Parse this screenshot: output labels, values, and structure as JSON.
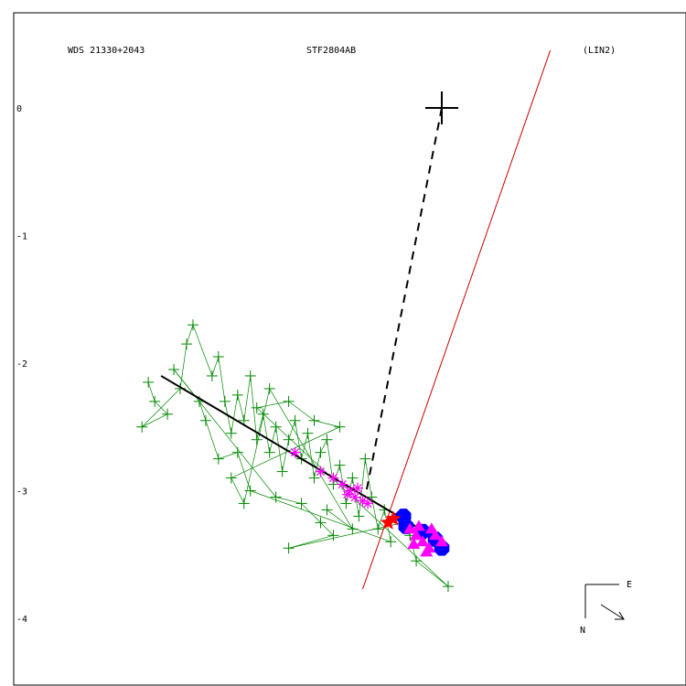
{
  "header": {
    "left": "WDS 21330+2043",
    "center": "STF2804AB",
    "right": "(LIN2)"
  },
  "compass": {
    "east_label": "E",
    "north_label": "N"
  },
  "colors": {
    "frame": "#000000",
    "micrometer": "#008800",
    "interferometric": "#ff00ff",
    "speckle": "#0000ff",
    "current": "#ff0000",
    "fit_line": "#000000",
    "red_line": "#cc0000"
  },
  "chart_data": {
    "type": "scatter",
    "y_ticks": [
      "0",
      "-1",
      "-2",
      "-3",
      "-4"
    ],
    "y_tick_values": [
      0,
      -1,
      -2,
      -3,
      -4
    ],
    "primary": [
      0,
      0
    ],
    "fit_line": [
      [
        -2.2,
        -2.1
      ],
      [
        0.05,
        -3.43
      ]
    ],
    "dashed_line": [
      [
        0,
        0
      ],
      [
        -0.6,
        -3.05
      ]
    ],
    "red_line": [
      [
        -0.62,
        -3.77
      ],
      [
        0.85,
        0.45
      ]
    ],
    "micrometer": [
      [
        -2.3,
        -2.15
      ],
      [
        -2.25,
        -2.3
      ],
      [
        -2.15,
        -2.4
      ],
      [
        -2.35,
        -2.5
      ],
      [
        -2.05,
        -2.2
      ],
      [
        -2.0,
        -1.85
      ],
      [
        -1.95,
        -1.7
      ],
      [
        -1.8,
        -2.1
      ],
      [
        -1.75,
        -1.95
      ],
      [
        -1.7,
        -2.3
      ],
      [
        -1.65,
        -2.55
      ],
      [
        -1.6,
        -2.25
      ],
      [
        -1.55,
        -2.45
      ],
      [
        -1.5,
        -2.1
      ],
      [
        -1.45,
        -2.6
      ],
      [
        -1.4,
        -2.4
      ],
      [
        -1.35,
        -2.7
      ],
      [
        -1.3,
        -2.5
      ],
      [
        -1.25,
        -2.85
      ],
      [
        -1.2,
        -2.6
      ],
      [
        -1.15,
        -2.45
      ],
      [
        -1.1,
        -2.75
      ],
      [
        -1.05,
        -2.55
      ],
      [
        -1.0,
        -2.9
      ],
      [
        -0.95,
        -2.7
      ],
      [
        -0.9,
        -2.6
      ],
      [
        -0.85,
        -2.95
      ],
      [
        -0.8,
        -2.8
      ],
      [
        -0.75,
        -3.1
      ],
      [
        -0.7,
        -2.9
      ],
      [
        -0.65,
        -3.2
      ],
      [
        -0.6,
        -2.75
      ],
      [
        -0.55,
        -3.05
      ],
      [
        -0.5,
        -3.3
      ],
      [
        -0.45,
        -3.15
      ],
      [
        -0.4,
        -3.4
      ],
      [
        -1.5,
        -3.0
      ],
      [
        -1.6,
        -2.7
      ],
      [
        -1.75,
        -2.75
      ],
      [
        -1.85,
        -2.45
      ],
      [
        -1.9,
        -2.3
      ],
      [
        -2.1,
        -2.05
      ],
      [
        -1.3,
        -3.05
      ],
      [
        -1.1,
        -3.1
      ],
      [
        -0.95,
        -3.25
      ],
      [
        -0.85,
        -3.35
      ],
      [
        -1.2,
        -3.45
      ],
      [
        -0.3,
        -3.25
      ],
      [
        -0.25,
        -3.35
      ],
      [
        -0.2,
        -3.55
      ],
      [
        0.05,
        -3.75
      ],
      [
        -1.45,
        -2.35
      ],
      [
        -1.2,
        -2.3
      ],
      [
        -1.0,
        -2.45
      ],
      [
        -0.8,
        -2.5
      ],
      [
        -1.65,
        -2.9
      ],
      [
        -1.55,
        -3.1
      ],
      [
        -1.35,
        -2.2
      ],
      [
        -0.7,
        -3.3
      ],
      [
        -0.9,
        -3.15
      ]
    ],
    "interferometric": [
      [
        -1.15,
        -2.7
      ],
      [
        -0.95,
        -2.85
      ],
      [
        -0.85,
        -2.9
      ],
      [
        -0.78,
        -2.95
      ],
      [
        -0.72,
        -3.0
      ],
      [
        -0.68,
        -3.05
      ],
      [
        -0.62,
        -3.08
      ],
      [
        -0.58,
        -3.1
      ],
      [
        -0.66,
        -2.98
      ],
      [
        -0.74,
        -3.03
      ]
    ],
    "speckle_triangles": [
      [
        -0.25,
        -3.3
      ],
      [
        -0.2,
        -3.35
      ],
      [
        -0.15,
        -3.4
      ],
      [
        -0.1,
        -3.45
      ],
      [
        -0.05,
        -3.35
      ],
      [
        0.0,
        -3.4
      ],
      [
        -0.18,
        -3.28
      ],
      [
        -0.08,
        -3.3
      ],
      [
        -0.12,
        -3.48
      ],
      [
        -0.22,
        -3.42
      ]
    ],
    "speckle_blue": [
      [
        -0.3,
        -3.2
      ],
      [
        -0.28,
        -3.28
      ],
      [
        -0.05,
        -3.38
      ],
      [
        0.0,
        -3.45
      ],
      [
        -0.15,
        -3.32
      ]
    ],
    "current": [
      [
        -0.42,
        -3.25
      ],
      [
        -0.38,
        -3.22
      ]
    ]
  }
}
